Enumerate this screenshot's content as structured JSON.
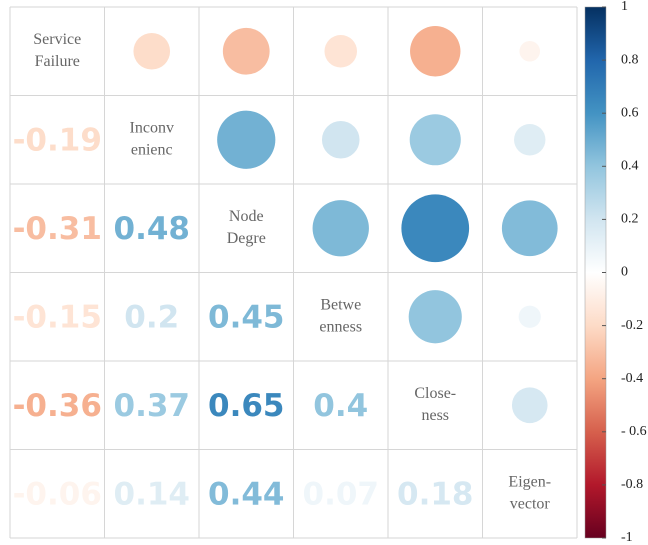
{
  "chart_data": {
    "type": "correlation",
    "variables": [
      [
        "Service",
        "Failure"
      ],
      [
        "Inconv",
        "enienc"
      ],
      [
        "Node",
        "Degre"
      ],
      [
        "Betwe",
        "enness"
      ],
      [
        "Close-",
        "ness"
      ],
      [
        "Eigen-",
        "vector"
      ]
    ],
    "values": [
      [
        -0.19
      ],
      [
        -0.31,
        0.48
      ],
      [
        -0.15,
        0.2,
        0.45
      ],
      [
        -0.36,
        0.37,
        0.65,
        0.4
      ],
      [
        -0.06,
        0.14,
        0.44,
        0.07,
        0.18
      ]
    ],
    "clim": [
      -1,
      1
    ],
    "colors": [
      "#67001F",
      "#B2182B",
      "#D6604D",
      "#F4A582",
      "#FDDBC7",
      "#FFFFFF",
      "#D1E5F0",
      "#92C5DE",
      "#4393C3",
      "#2166AC",
      "#053061"
    ],
    "cticks": [
      1,
      0.8,
      0.6,
      0.4,
      0.2,
      0,
      -0.2,
      -0.4,
      {
        "value": -0.6,
        "label": "- 0.6"
      },
      -0.8,
      -1
    ]
  }
}
